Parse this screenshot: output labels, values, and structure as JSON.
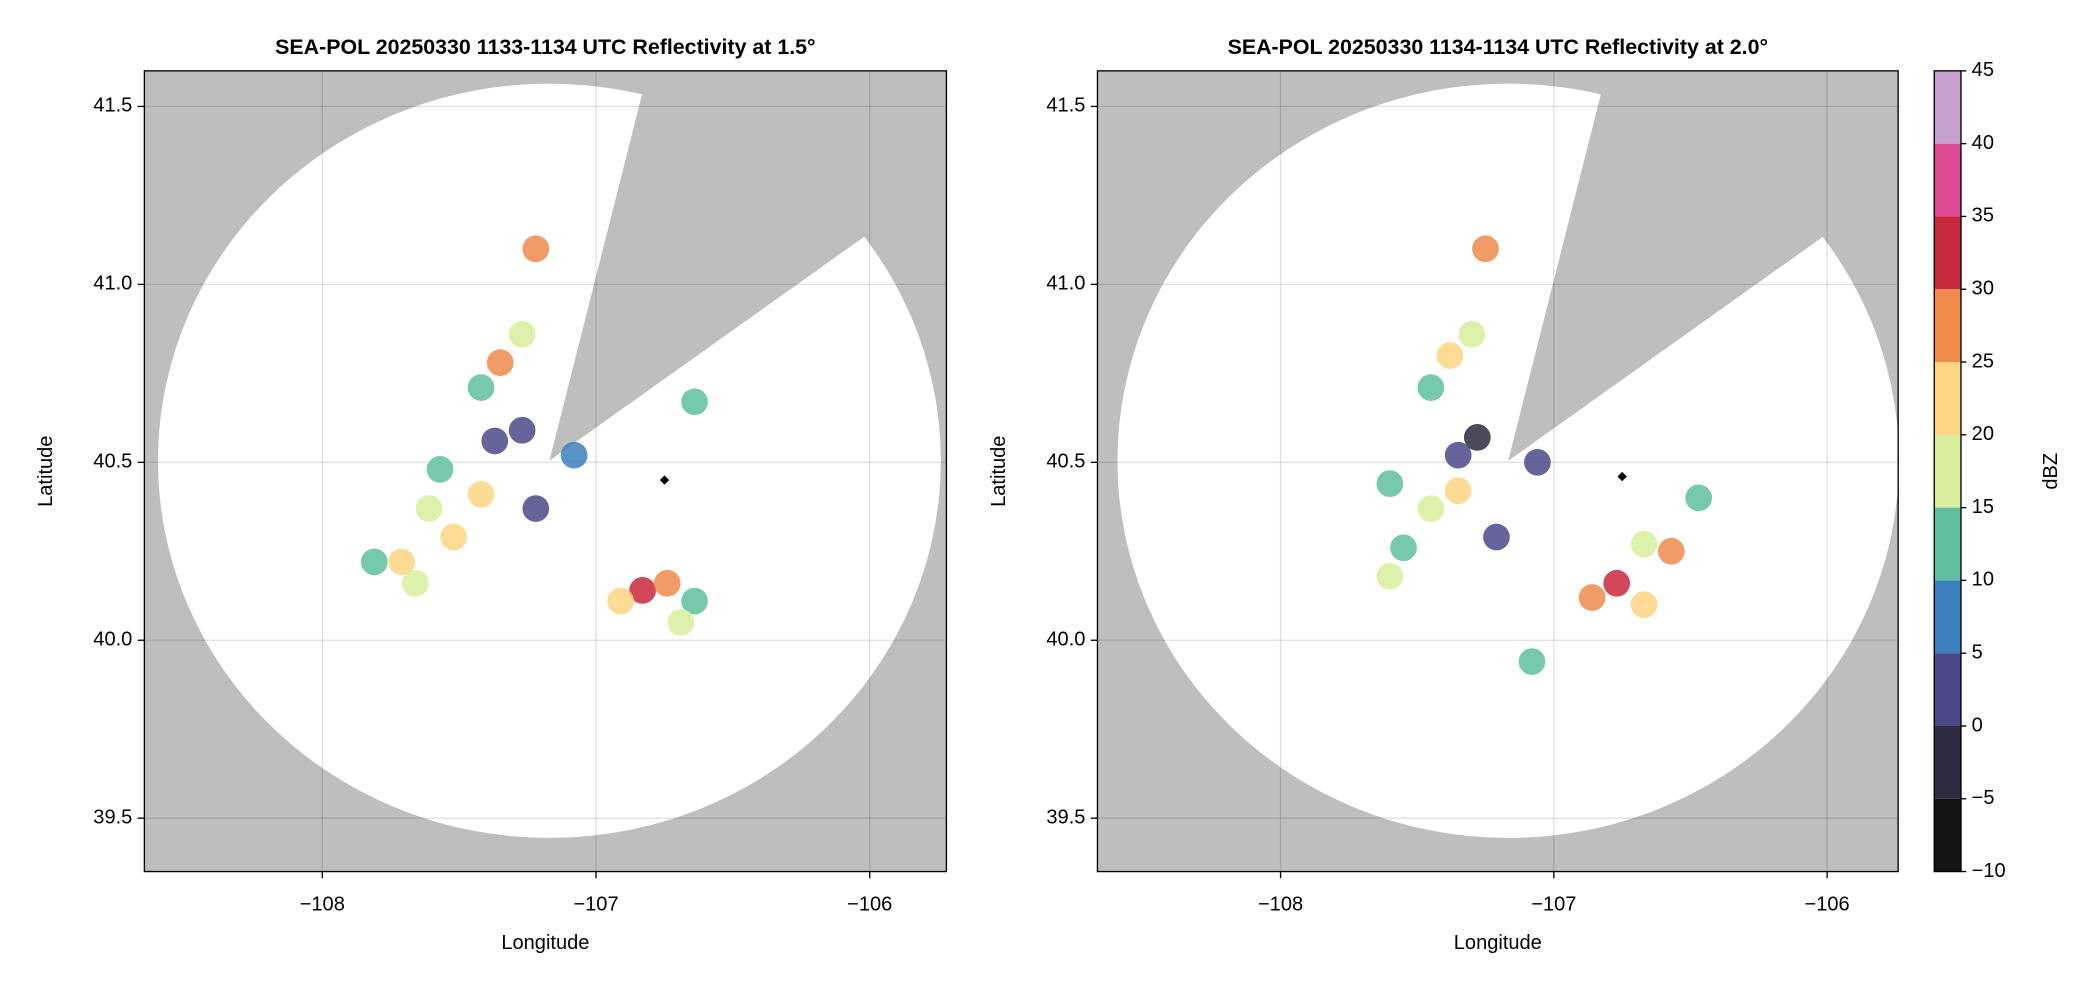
{
  "chart_data": [
    {
      "type": "scatter",
      "title": "SEA-POL 20250330 1133-1134 UTC Reflectivity at 1.5°",
      "xlabel": "Longitude",
      "ylabel": "Latitude",
      "xlim": [
        -108.65,
        -105.72
      ],
      "ylim": [
        39.35,
        41.6
      ],
      "xticks": [
        {
          "value": -108,
          "label": "−108"
        },
        {
          "value": -107,
          "label": "−107"
        },
        {
          "value": -106,
          "label": "−106"
        }
      ],
      "yticks": [
        39.5,
        {
          "value": 40,
          "label": "40.0"
        },
        40.5,
        {
          "value": 41,
          "label": "41.0"
        },
        41.5
      ],
      "grid": true,
      "background": "#bebebe",
      "x": [
        -107.22,
        -107.27,
        -107.35,
        -107.42,
        -107.27,
        -107.37,
        -107.57,
        -107.42,
        -107.61,
        -107.52,
        -107.71,
        -107.81,
        -107.66,
        -107.08,
        -107.22,
        -106.83,
        -106.74,
        -106.91,
        -106.64,
        -106.69,
        -106.64
      ],
      "y": [
        41.1,
        40.86,
        40.78,
        40.71,
        40.59,
        40.56,
        40.48,
        40.41,
        40.37,
        40.29,
        40.22,
        40.22,
        40.16,
        40.52,
        40.37,
        40.14,
        40.16,
        40.11,
        40.11,
        40.05,
        40.67
      ],
      "values": [
        28,
        15,
        27,
        10,
        0,
        3,
        12,
        22,
        17,
        20,
        23,
        13,
        18,
        5,
        2,
        32,
        28,
        22,
        14,
        18,
        10
      ],
      "markers": {
        "x": [
          -106.75
        ],
        "y": [
          40.45
        ],
        "color": "#000000"
      }
    },
    {
      "type": "scatter",
      "title": "SEA-POL 20250330 1134-1134 UTC Reflectivity at 2.0°",
      "xlabel": "Longitude",
      "ylabel": "Latitude",
      "xlim": [
        -108.67,
        -105.74
      ],
      "ylim": [
        39.35,
        41.6
      ],
      "xticks": [
        {
          "value": -108,
          "label": "−108"
        },
        {
          "value": -107,
          "label": "−107"
        },
        {
          "value": -106,
          "label": "−106"
        }
      ],
      "yticks": [
        39.5,
        {
          "value": 40,
          "label": "40.0"
        },
        40.5,
        {
          "value": 41,
          "label": "41.0"
        },
        41.5
      ],
      "grid": true,
      "background": "#bebebe",
      "x": [
        -107.25,
        -107.3,
        -107.38,
        -107.45,
        -107.28,
        -107.35,
        -107.6,
        -107.45,
        -107.35,
        -107.55,
        -107.6,
        -107.06,
        -106.77,
        -106.86,
        -106.67,
        -106.57,
        -106.67,
        -107.08,
        -106.47,
        -107.21
      ],
      "y": [
        41.1,
        40.86,
        40.8,
        40.71,
        40.57,
        40.52,
        40.44,
        40.37,
        40.42,
        40.26,
        40.18,
        40.5,
        40.16,
        40.12,
        40.1,
        40.25,
        40.27,
        39.94,
        40.4,
        40.29
      ],
      "values": [
        25,
        15,
        22,
        10,
        -2,
        3,
        13,
        18,
        24,
        12,
        15,
        4,
        33,
        26,
        21,
        25,
        17,
        12,
        12,
        3
      ],
      "markers": {
        "x": [
          -106.75
        ],
        "y": [
          40.46
        ],
        "color": "#000000"
      }
    }
  ],
  "colorbar": {
    "label": "dBZ",
    "lim": [
      -10,
      45
    ],
    "ticks": [
      {
        "value": -10,
        "label": "−10"
      },
      {
        "value": -5,
        "label": "−5"
      },
      0,
      5,
      10,
      15,
      20,
      25,
      30,
      35,
      40,
      45
    ],
    "colors": [
      "#141414",
      "#2e2a40",
      "#4a4a8a",
      "#3b7fbf",
      "#5fbfa0",
      "#d6ee9b",
      "#fdd582",
      "#ef8a4b",
      "#c8283c",
      "#dd4c93",
      "#c6a0d0",
      "#4a1050"
    ]
  }
}
